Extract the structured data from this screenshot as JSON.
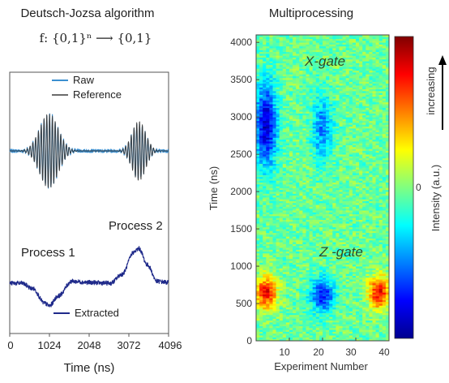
{
  "chart_data": [
    {
      "type": "line",
      "title": "Deutsch-Jozsa algorithm",
      "subtitle": "f: {0,1}ⁿ ⟶ {0,1}",
      "xlabel": "Time (ns)",
      "x_ticks": [
        "0",
        "1024",
        "2048",
        "3072",
        "4096"
      ],
      "xlim": [
        0,
        4096
      ],
      "legend_upper": [
        "Raw",
        "Reference"
      ],
      "legend_lower": [
        "Extracted"
      ],
      "annotations": [
        "Process 1",
        "Process 2"
      ],
      "series": [
        {
          "name": "Raw",
          "color": "#3b8fd0",
          "panel": "upper",
          "packets": [
            {
              "center": 1010,
              "amplitude": 1.0,
              "width": 340
            },
            {
              "center": 3330,
              "amplitude": 0.75,
              "width": 250
            }
          ]
        },
        {
          "name": "Reference",
          "color": "#3a3a3a",
          "panel": "upper",
          "packets": [
            {
              "center": 1010,
              "amplitude": 1.0,
              "width": 340
            },
            {
              "center": 3330,
              "amplitude": 0.8,
              "width": 250
            }
          ]
        },
        {
          "name": "Extracted",
          "color": "#1f2a8a",
          "panel": "lower",
          "points": [
            [
              0,
              0
            ],
            [
              300,
              0
            ],
            [
              600,
              -0.15
            ],
            [
              900,
              -0.55
            ],
            [
              1024,
              -0.62
            ],
            [
              1250,
              -0.35
            ],
            [
              1600,
              0.05
            ],
            [
              2048,
              0.02
            ],
            [
              2600,
              0.0
            ],
            [
              2900,
              0.25
            ],
            [
              3200,
              0.85
            ],
            [
              3330,
              0.95
            ],
            [
              3550,
              0.5
            ],
            [
              3800,
              0.05
            ],
            [
              4096,
              0.02
            ]
          ]
        }
      ]
    },
    {
      "type": "heatmap",
      "title": "Multiprocessing",
      "xlabel": "Experiment Number",
      "ylabel": "Time (ns)",
      "colorbar_label": "Intensity (a.u.)",
      "colorbar_tick": "0",
      "colorbar_arrow_label": "increasing",
      "x_ticks": [
        "10",
        "20",
        "30",
        "40"
      ],
      "y_ticks": [
        "0",
        "500",
        "1000",
        "1500",
        "2000",
        "2500",
        "3000",
        "3500",
        "4000"
      ],
      "xlim": [
        0,
        40
      ],
      "ylim": [
        0,
        4100
      ],
      "annotations": [
        "X-gate",
        "Z -gate"
      ],
      "blobs": [
        {
          "x": 3,
          "y": 2900,
          "sx": 3.2,
          "sy": 550,
          "value": -1.0
        },
        {
          "x": 20,
          "y": 2850,
          "sx": 3.0,
          "sy": 450,
          "value": -0.55
        },
        {
          "x": 3,
          "y": 650,
          "sx": 3.2,
          "sy": 220,
          "value": 0.95
        },
        {
          "x": 20,
          "y": 620,
          "sx": 3.6,
          "sy": 230,
          "value": -0.8
        },
        {
          "x": 37,
          "y": 650,
          "sx": 3.2,
          "sy": 220,
          "value": 0.95
        }
      ]
    }
  ]
}
